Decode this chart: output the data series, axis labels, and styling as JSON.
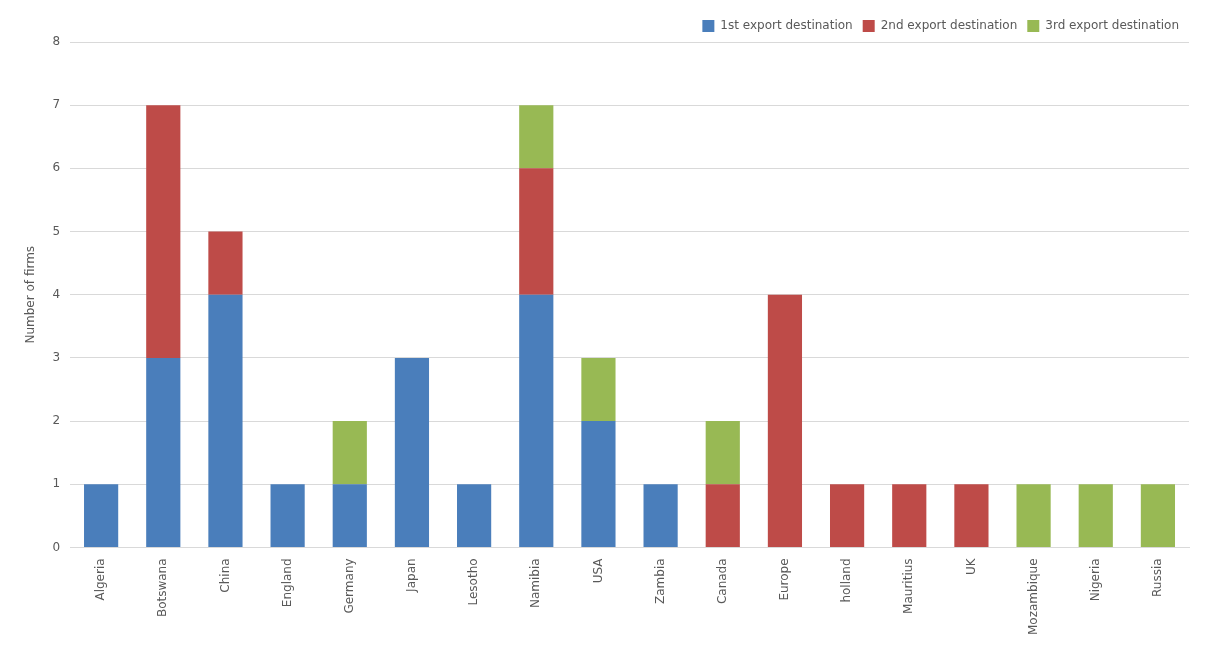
{
  "chart_data": {
    "type": "bar",
    "stacked": true,
    "ylabel": "Number of firms",
    "categories": [
      "Algeria",
      "Botswana",
      "China",
      "England",
      "Germany",
      "Japan",
      "Lesotho",
      "Namibia",
      "USA",
      "Zambia",
      "Canada",
      "Europe",
      "holland",
      "Mauritius",
      "UK",
      "Mozambique",
      "Nigeria",
      "Russia"
    ],
    "series": [
      {
        "name": "1st export destination",
        "color": "#4a7ebb",
        "values": [
          1,
          3,
          4,
          1,
          1,
          3,
          1,
          4,
          2,
          1,
          0,
          0,
          0,
          0,
          0,
          0,
          0,
          0
        ]
      },
      {
        "name": "2nd export destination",
        "color": "#be4b48",
        "values": [
          0,
          4,
          1,
          0,
          0,
          0,
          0,
          2,
          0,
          0,
          1,
          4,
          1,
          1,
          1,
          0,
          0,
          0
        ]
      },
      {
        "name": "3rd export destination",
        "color": "#98b954",
        "values": [
          0,
          0,
          0,
          0,
          1,
          0,
          0,
          1,
          1,
          0,
          1,
          0,
          0,
          0,
          0,
          1,
          1,
          1
        ]
      }
    ],
    "ylim": [
      0,
      8
    ],
    "yticks": [
      0,
      1,
      2,
      3,
      4,
      5,
      6,
      7,
      8
    ],
    "grid": "y",
    "legend": "top right"
  }
}
